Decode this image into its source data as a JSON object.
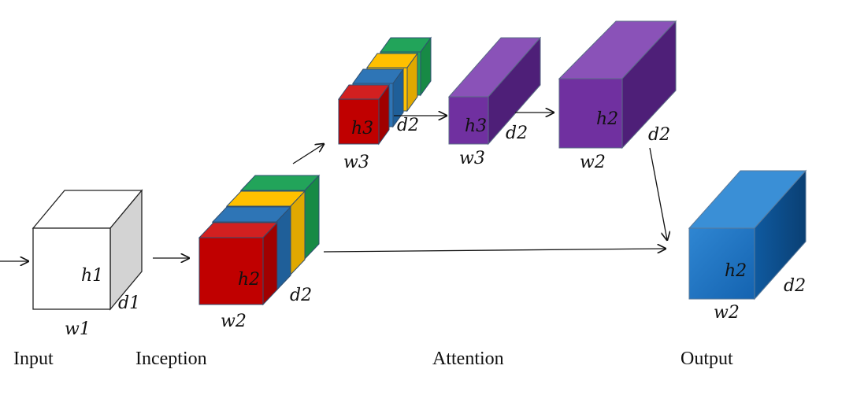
{
  "stages": {
    "input": "Input",
    "inception": "Inception",
    "attention": "Attention",
    "output": "Output"
  },
  "input_block": {
    "h": "h1",
    "d": "d1",
    "w": "w1"
  },
  "inception_block": {
    "h": "h2",
    "d": "d2",
    "w": "w2"
  },
  "attention_small_stack": {
    "h": "h3",
    "d": "d2",
    "w": "w3"
  },
  "attention_small_block": {
    "h": "h3",
    "d": "d2",
    "w": "w3"
  },
  "attention_large_block": {
    "h": "h2",
    "d": "d2",
    "w": "w2"
  },
  "output_block": {
    "h": "h2",
    "d": "d2",
    "w": "w2"
  },
  "colors": {
    "input_front": "#ffffff",
    "input_side": "#d3d3d3",
    "stack_red": "#c00000",
    "stack_blue": "#2e75b6",
    "stack_yellow": "#ffc000",
    "stack_green": "#22a45a",
    "purple": "#7030a0",
    "blue": "#1f77c8"
  }
}
